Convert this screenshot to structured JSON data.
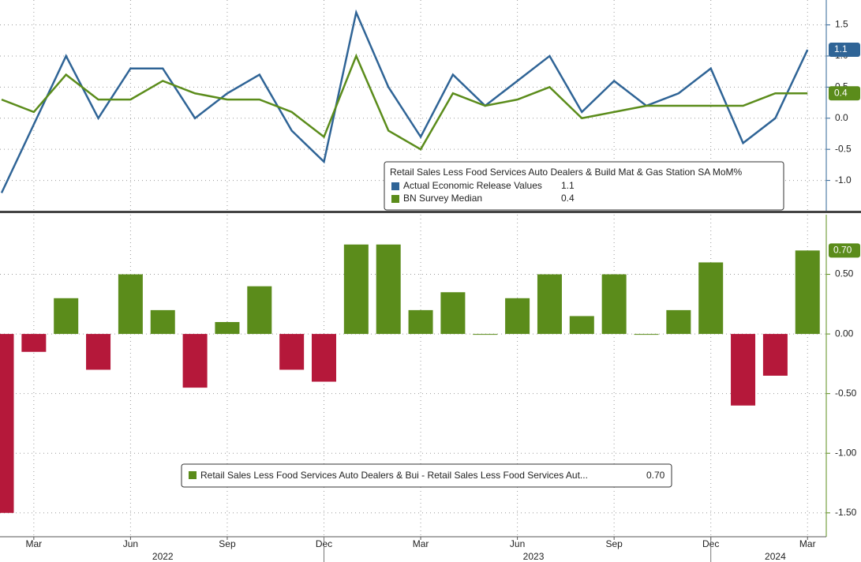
{
  "chart_data": [
    {
      "type": "line",
      "title": "Retail Sales Less Food Services Auto Dealers & Build Mat & Gas Station SA MoM%",
      "series": [
        {
          "name": "Actual Economic Release Values",
          "color": "#2f6496",
          "values": [
            -1.2,
            -0.1,
            1.0,
            0.0,
            0.8,
            0.8,
            0.0,
            0.4,
            0.7,
            -0.2,
            -0.7,
            1.7,
            0.5,
            -0.3,
            0.7,
            0.2,
            0.6,
            1.0,
            0.1,
            0.6,
            0.2,
            0.4,
            0.8,
            -0.4,
            0.0,
            1.1
          ]
        },
        {
          "name": "BN Survey Median",
          "color": "#5b8c1b",
          "values": [
            0.3,
            0.1,
            0.7,
            0.3,
            0.3,
            0.6,
            0.4,
            0.3,
            0.3,
            0.1,
            -0.3,
            1.0,
            -0.2,
            -0.5,
            0.4,
            0.2,
            0.3,
            0.5,
            0.0,
            0.1,
            0.2,
            0.2,
            0.2,
            0.2,
            0.4,
            0.4
          ]
        }
      ],
      "ylim": [
        -1.5,
        1.9
      ],
      "yticks": [
        1.5,
        {
          "value": 1,
          "label": "1.0"
        },
        0.5,
        {
          "value": 0,
          "label": "0.0"
        },
        -0.5,
        {
          "value": -1,
          "label": "-1.0"
        }
      ],
      "grid": true
    },
    {
      "type": "bar",
      "series": [
        {
          "name": "Retail Sales Less Food Services Auto Dealers & Bui - Retail Sales Less Food Services Aut...",
          "color": "#5b8c1b",
          "negative_color": "#b5183a",
          "values": [
            -1.5,
            -0.15,
            0.3,
            -0.3,
            0.5,
            0.2,
            -0.45,
            0.1,
            0.4,
            -0.3,
            -0.4,
            0.75,
            0.75,
            0.2,
            0.35,
            0.0,
            0.3,
            0.5,
            0.15,
            0.5,
            0.0,
            0.2,
            0.6,
            -0.6,
            -0.35,
            0.7
          ],
          "last_value_label": "0.70"
        }
      ],
      "categories": [
        null,
        "Mar",
        null,
        null,
        "Jun",
        null,
        null,
        "Sep",
        null,
        null,
        "Dec",
        null,
        null,
        "Mar",
        null,
        null,
        "Jun",
        null,
        null,
        "Sep",
        null,
        null,
        "Dec",
        null,
        null,
        "Mar"
      ],
      "years": [
        {
          "label": "2022",
          "from": 0,
          "to": 10
        },
        {
          "label": "2023",
          "from": 11,
          "to": 22
        },
        {
          "label": "2024",
          "from": 23,
          "to": 25
        }
      ],
      "ylim": [
        -1.7,
        1.0
      ],
      "yticks": [
        {
          "value": 0.5,
          "label": "0.50"
        },
        {
          "value": 0,
          "label": "0.00"
        },
        {
          "value": -0.5,
          "label": "-0.50"
        },
        {
          "value": -1,
          "label": "-1.00"
        },
        {
          "value": -1.5,
          "label": "-1.50"
        }
      ],
      "grid": true
    }
  ]
}
